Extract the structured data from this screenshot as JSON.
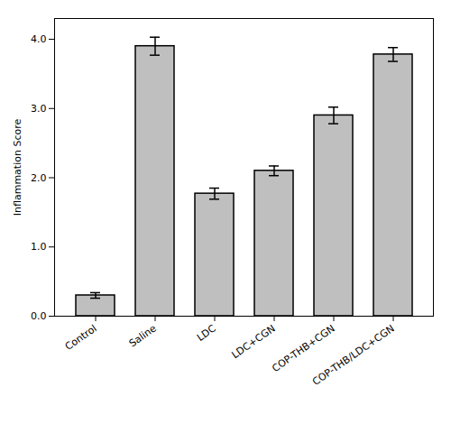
{
  "chart_data": {
    "type": "bar",
    "categories": [
      "Control",
      "Saline",
      "LDC",
      "LDC+CGN",
      "COP-THB+CGN",
      "COP-THB/LDC+CGN"
    ],
    "values": [
      0.3,
      3.9,
      1.77,
      2.1,
      2.9,
      3.78
    ],
    "errors": [
      0.04,
      0.13,
      0.08,
      0.07,
      0.12,
      0.1
    ],
    "ylabel": "Inflammation Score",
    "ylim": [
      0,
      4.3
    ],
    "yticks": [
      0,
      1,
      2,
      3,
      4
    ],
    "color": "#bfbfbf",
    "grid": false
  }
}
